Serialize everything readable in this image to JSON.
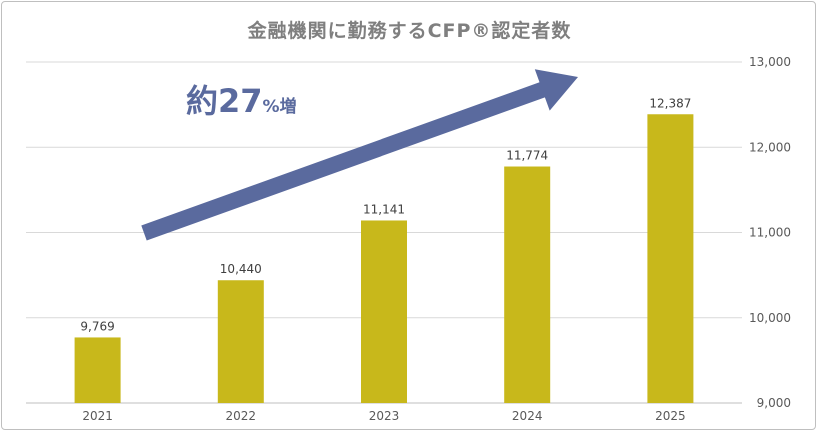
{
  "chart_data": {
    "type": "bar",
    "title": "金融機関に勤務するCFP®認定者数",
    "categories": [
      "2021",
      "2022",
      "2023",
      "2024",
      "2025"
    ],
    "values": [
      9769,
      10440,
      11141,
      11774,
      12387
    ],
    "data_labels": [
      "9,769",
      "10,440",
      "11,141",
      "11,774",
      "12,387"
    ],
    "ylim": [
      9000,
      13000
    ],
    "y_ticks": [
      9000,
      10000,
      11000,
      12000,
      13000
    ],
    "y_tick_labels": [
      "9,000",
      "10,000",
      "11,000",
      "12,000",
      "13,000"
    ],
    "y_axis_side": "right",
    "grid": true,
    "bar_color": "#c8b81b",
    "annotation": {
      "prefix": "約27",
      "suffix": "%増",
      "arrow_color": "#5a6a9e"
    }
  }
}
